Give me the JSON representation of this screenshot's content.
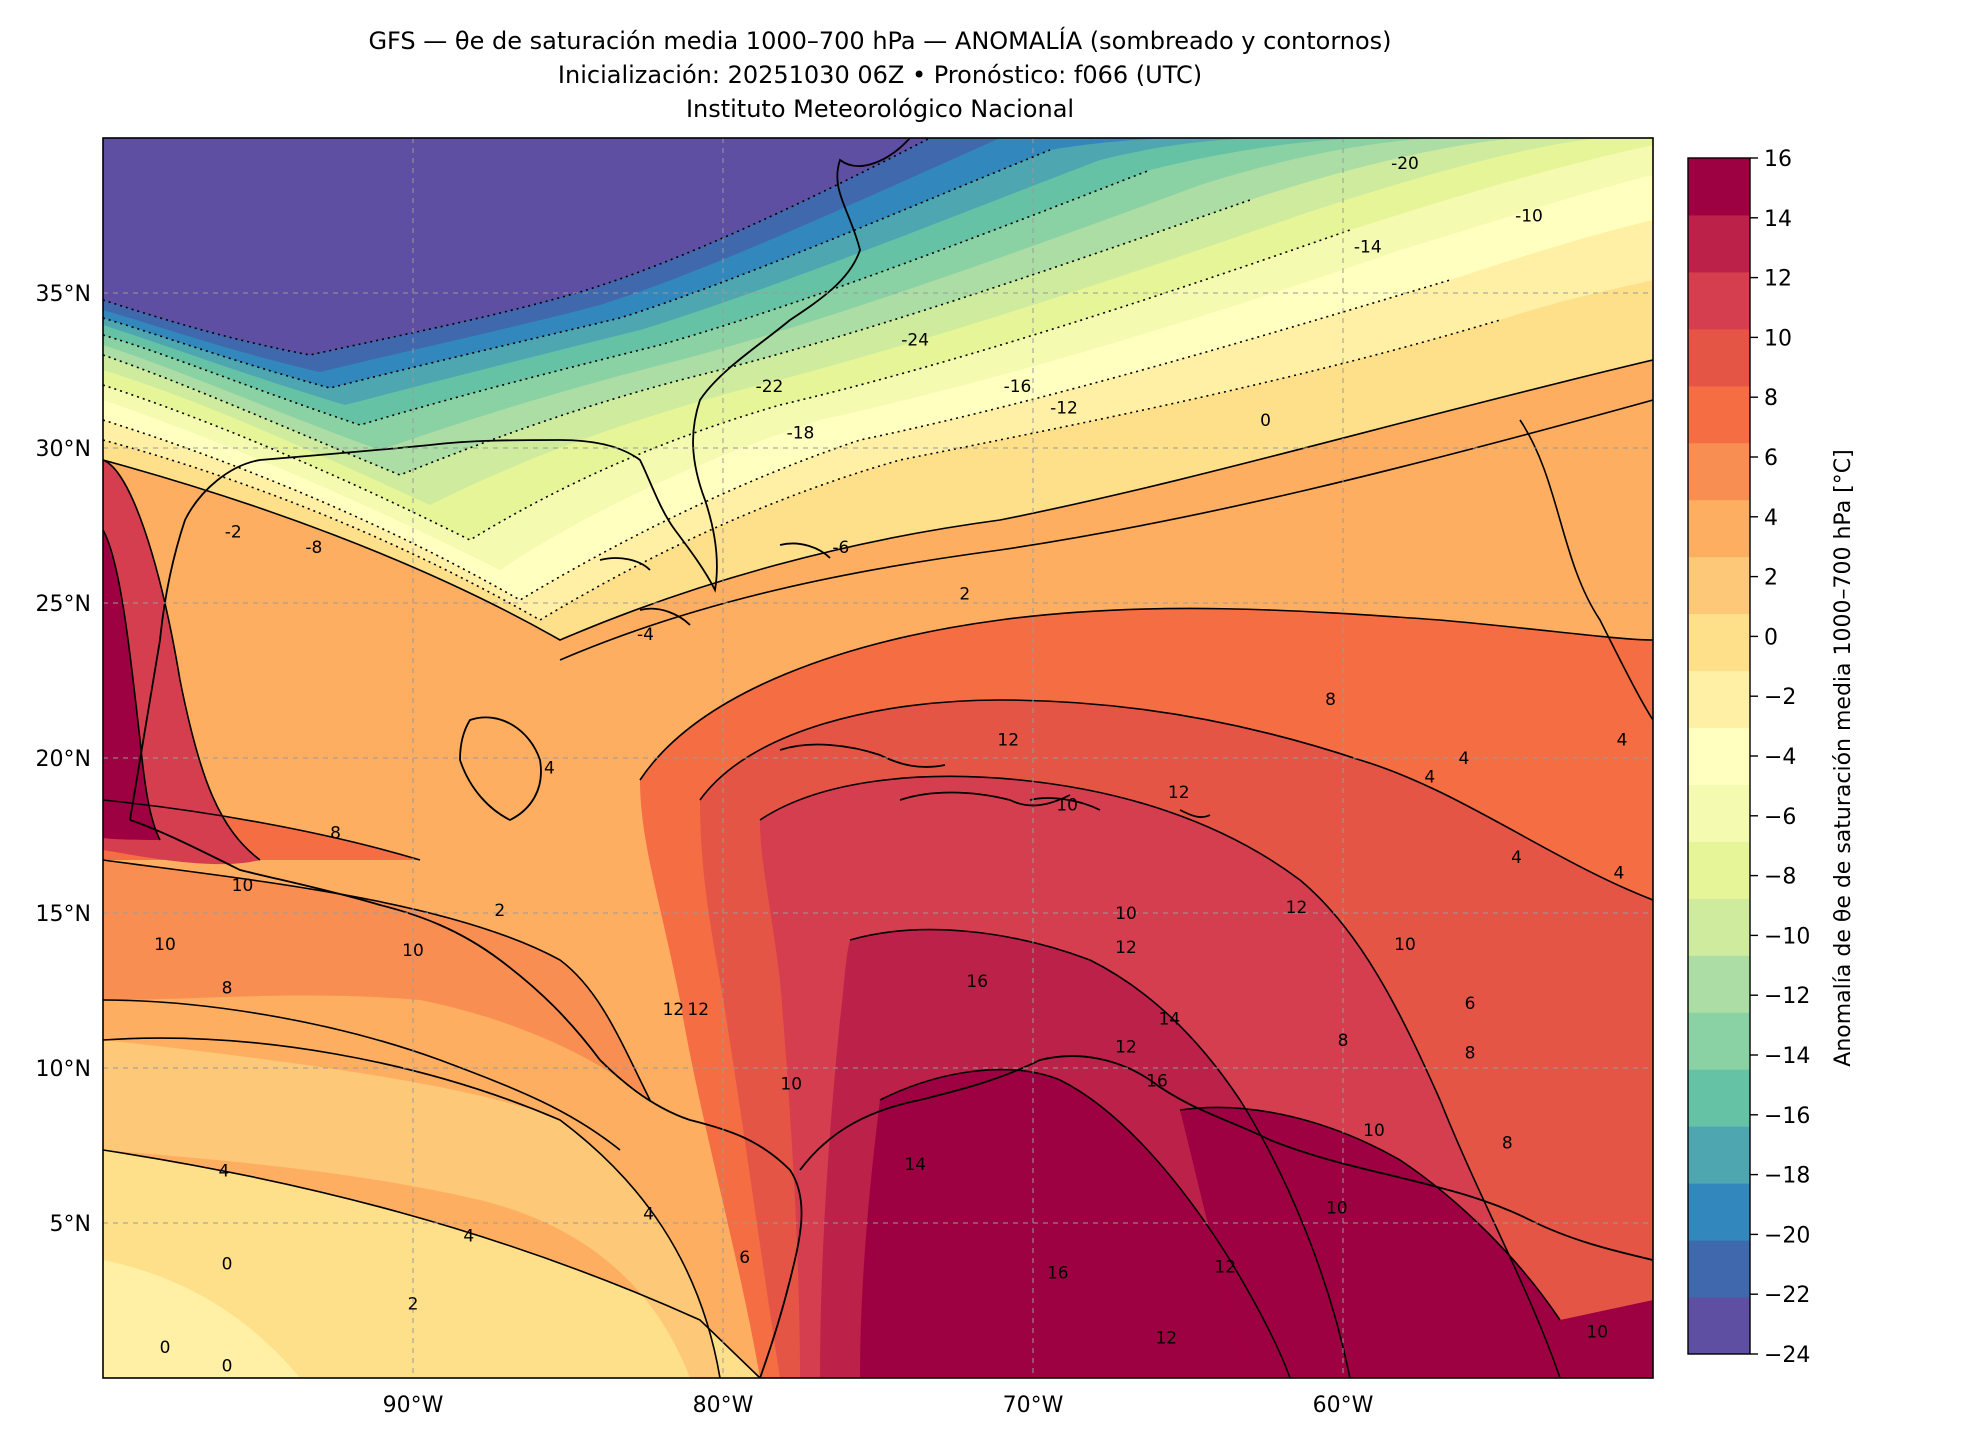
{
  "header": {
    "title": "GFS — θe de saturación media 1000–700 hPa — ANOMALÍA (sombreado y contornos)",
    "subtitle": "Inicialización: 20251030 06Z   •   Pronóstico: f066 (UTC)",
    "institution": "Instituto Meteorológico Nacional"
  },
  "map": {
    "lon_range": [
      -100,
      -50
    ],
    "lat_range": [
      0,
      40
    ],
    "lon_ticks": [
      {
        "value": -90,
        "label": "90°W"
      },
      {
        "value": -80,
        "label": "80°W"
      },
      {
        "value": -70,
        "label": "70°W"
      },
      {
        "value": -60,
        "label": "60°W"
      }
    ],
    "lat_ticks": [
      {
        "value": 35,
        "label": "35°N"
      },
      {
        "value": 30,
        "label": "30°N"
      },
      {
        "value": 25,
        "label": "25°N"
      },
      {
        "value": 20,
        "label": "20°N"
      },
      {
        "value": 15,
        "label": "15°N"
      },
      {
        "value": 10,
        "label": "10°N"
      },
      {
        "value": 5,
        "label": "5°N"
      }
    ],
    "contour_labels": [
      {
        "text": "-24",
        "lon": -73.8,
        "lat": 33.5
      },
      {
        "text": "-22",
        "lon": -78.5,
        "lat": 32.0
      },
      {
        "text": "-20",
        "lon": -58.0,
        "lat": 39.2
      },
      {
        "text": "-18",
        "lon": -77.5,
        "lat": 30.5
      },
      {
        "text": "-16",
        "lon": -70.5,
        "lat": 32.0
      },
      {
        "text": "-14",
        "lon": -59.2,
        "lat": 36.5
      },
      {
        "text": "-12",
        "lon": -69.0,
        "lat": 31.3
      },
      {
        "text": "-10",
        "lon": -54.0,
        "lat": 37.5
      },
      {
        "text": "-8",
        "lon": -93.2,
        "lat": 26.8
      },
      {
        "text": "-6",
        "lon": -76.2,
        "lat": 26.8
      },
      {
        "text": "-4",
        "lon": -82.5,
        "lat": 24.0
      },
      {
        "text": "-2",
        "lon": -95.8,
        "lat": 27.3
      },
      {
        "text": "0",
        "lon": -62.5,
        "lat": 30.9
      },
      {
        "text": "2",
        "lon": -72.2,
        "lat": 25.3
      },
      {
        "text": "4",
        "lon": -85.6,
        "lat": 19.7
      },
      {
        "text": "8",
        "lon": -92.5,
        "lat": 17.6
      },
      {
        "text": "10",
        "lon": -98.0,
        "lat": 14.0
      },
      {
        "text": "8",
        "lon": -96.0,
        "lat": 12.6
      },
      {
        "text": "10",
        "lon": -95.5,
        "lat": 15.9
      },
      {
        "text": "10",
        "lon": -90.0,
        "lat": 13.8
      },
      {
        "text": "12",
        "lon": -80.8,
        "lat": 11.9
      },
      {
        "text": "10",
        "lon": -77.8,
        "lat": 9.5
      },
      {
        "text": "12",
        "lon": -70.8,
        "lat": 20.6
      },
      {
        "text": "10",
        "lon": -68.9,
        "lat": 18.5
      },
      {
        "text": "12",
        "lon": -65.3,
        "lat": 18.9
      },
      {
        "text": "10",
        "lon": -67.0,
        "lat": 15.0
      },
      {
        "text": "12",
        "lon": -67.0,
        "lat": 13.9
      },
      {
        "text": "16",
        "lon": -71.8,
        "lat": 12.8
      },
      {
        "text": "14",
        "lon": -65.6,
        "lat": 11.6
      },
      {
        "text": "12",
        "lon": -67.0,
        "lat": 10.7
      },
      {
        "text": "16",
        "lon": -66.0,
        "lat": 9.6
      },
      {
        "text": "12",
        "lon": -61.5,
        "lat": 15.2
      },
      {
        "text": "10",
        "lon": -58.0,
        "lat": 14.0
      },
      {
        "text": "6",
        "lon": -55.9,
        "lat": 12.1
      },
      {
        "text": "8",
        "lon": -60.0,
        "lat": 10.9
      },
      {
        "text": "8",
        "lon": -55.9,
        "lat": 10.5
      },
      {
        "text": "10",
        "lon": -59.0,
        "lat": 8.0
      },
      {
        "text": "8",
        "lon": -54.7,
        "lat": 7.6
      },
      {
        "text": "10",
        "lon": -60.2,
        "lat": 5.5
      },
      {
        "text": "8",
        "lon": -60.4,
        "lat": 21.9
      },
      {
        "text": "4",
        "lon": -56.1,
        "lat": 20.0
      },
      {
        "text": "4",
        "lon": -57.2,
        "lat": 19.4
      },
      {
        "text": "4",
        "lon": -54.4,
        "lat": 16.8
      },
      {
        "text": "4",
        "lon": -51.0,
        "lat": 20.6
      },
      {
        "text": "4",
        "lon": -51.1,
        "lat": 16.3
      },
      {
        "text": "14",
        "lon": -73.8,
        "lat": 6.9
      },
      {
        "text": "16",
        "lon": -69.2,
        "lat": 3.4
      },
      {
        "text": "12",
        "lon": -63.8,
        "lat": 3.6
      },
      {
        "text": "12",
        "lon": -65.7,
        "lat": 1.3
      },
      {
        "text": "10",
        "lon": -51.8,
        "lat": 1.5
      },
      {
        "text": "6",
        "lon": -79.3,
        "lat": 3.9
      },
      {
        "text": "4",
        "lon": -82.4,
        "lat": 5.3
      },
      {
        "text": "4",
        "lon": -88.2,
        "lat": 4.6
      },
      {
        "text": "4",
        "lon": -96.1,
        "lat": 6.7
      },
      {
        "text": "2",
        "lon": -90.0,
        "lat": 2.4
      },
      {
        "text": "0",
        "lon": -96.0,
        "lat": 3.7
      },
      {
        "text": "0",
        "lon": -98.0,
        "lat": 1.0
      },
      {
        "text": "0",
        "lon": -96.0,
        "lat": 0.4
      },
      {
        "text": "12",
        "lon": -81.6,
        "lat": 11.9
      },
      {
        "text": "2",
        "lon": -87.2,
        "lat": 15.1
      }
    ]
  },
  "colorbar": {
    "label": "Anomalía de θe de saturación media 1000–700 hPa [°C]",
    "min": -24,
    "max": 16,
    "step": 2,
    "tick_labels": [
      "16",
      "14",
      "12",
      "10",
      "8",
      "6",
      "4",
      "2",
      "0",
      "−2",
      "−4",
      "−6",
      "−8",
      "−10",
      "−12",
      "−14",
      "−16",
      "−18",
      "−20",
      "−22",
      "−24"
    ],
    "colors": [
      "#5e4fa2",
      "#4068ad",
      "#3288bd",
      "#4ea6b0",
      "#66c2a5",
      "#8ad1a4",
      "#abdda4",
      "#cfeb9e",
      "#e6f598",
      "#f4faaf",
      "#ffffbf",
      "#fff0a6",
      "#fee08b",
      "#fdc877",
      "#fdae61",
      "#f98e52",
      "#f46d43",
      "#e45546",
      "#d53e4f",
      "#bc2149",
      "#9e0142"
    ]
  }
}
